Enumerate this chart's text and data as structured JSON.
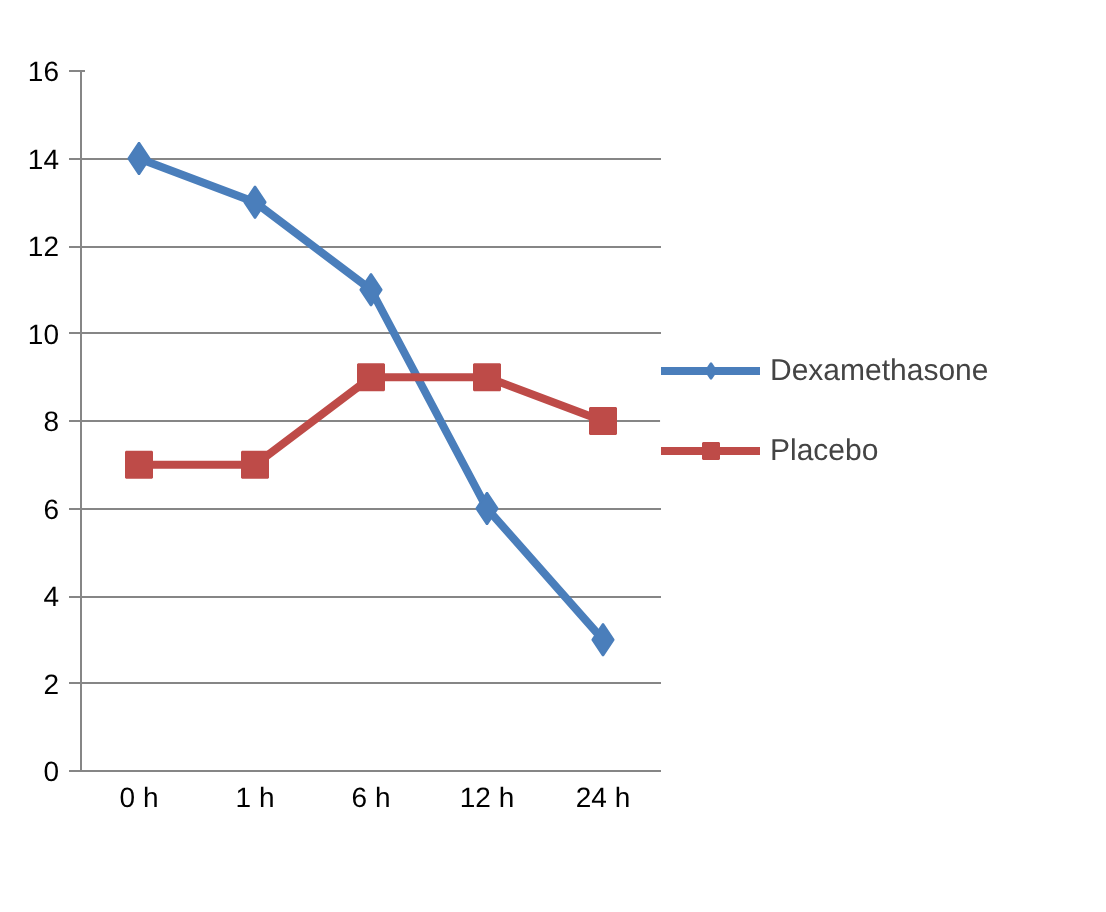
{
  "chart_data": {
    "type": "line",
    "categories": [
      "0 h",
      "1 h",
      "6 h",
      "12 h",
      "24 h"
    ],
    "series": [
      {
        "name": "Dexamethasone",
        "color": "#4a7ebb",
        "marker": "diamond",
        "values": [
          14,
          13,
          11,
          6,
          3
        ]
      },
      {
        "name": "Placebo",
        "color": "#be4b48",
        "marker": "square",
        "values": [
          7,
          7,
          9,
          9,
          8
        ]
      }
    ],
    "ylim": [
      0,
      16
    ],
    "yticks": [
      0,
      2,
      4,
      6,
      8,
      10,
      12,
      14,
      16
    ],
    "grid": "y",
    "legend": "right"
  }
}
